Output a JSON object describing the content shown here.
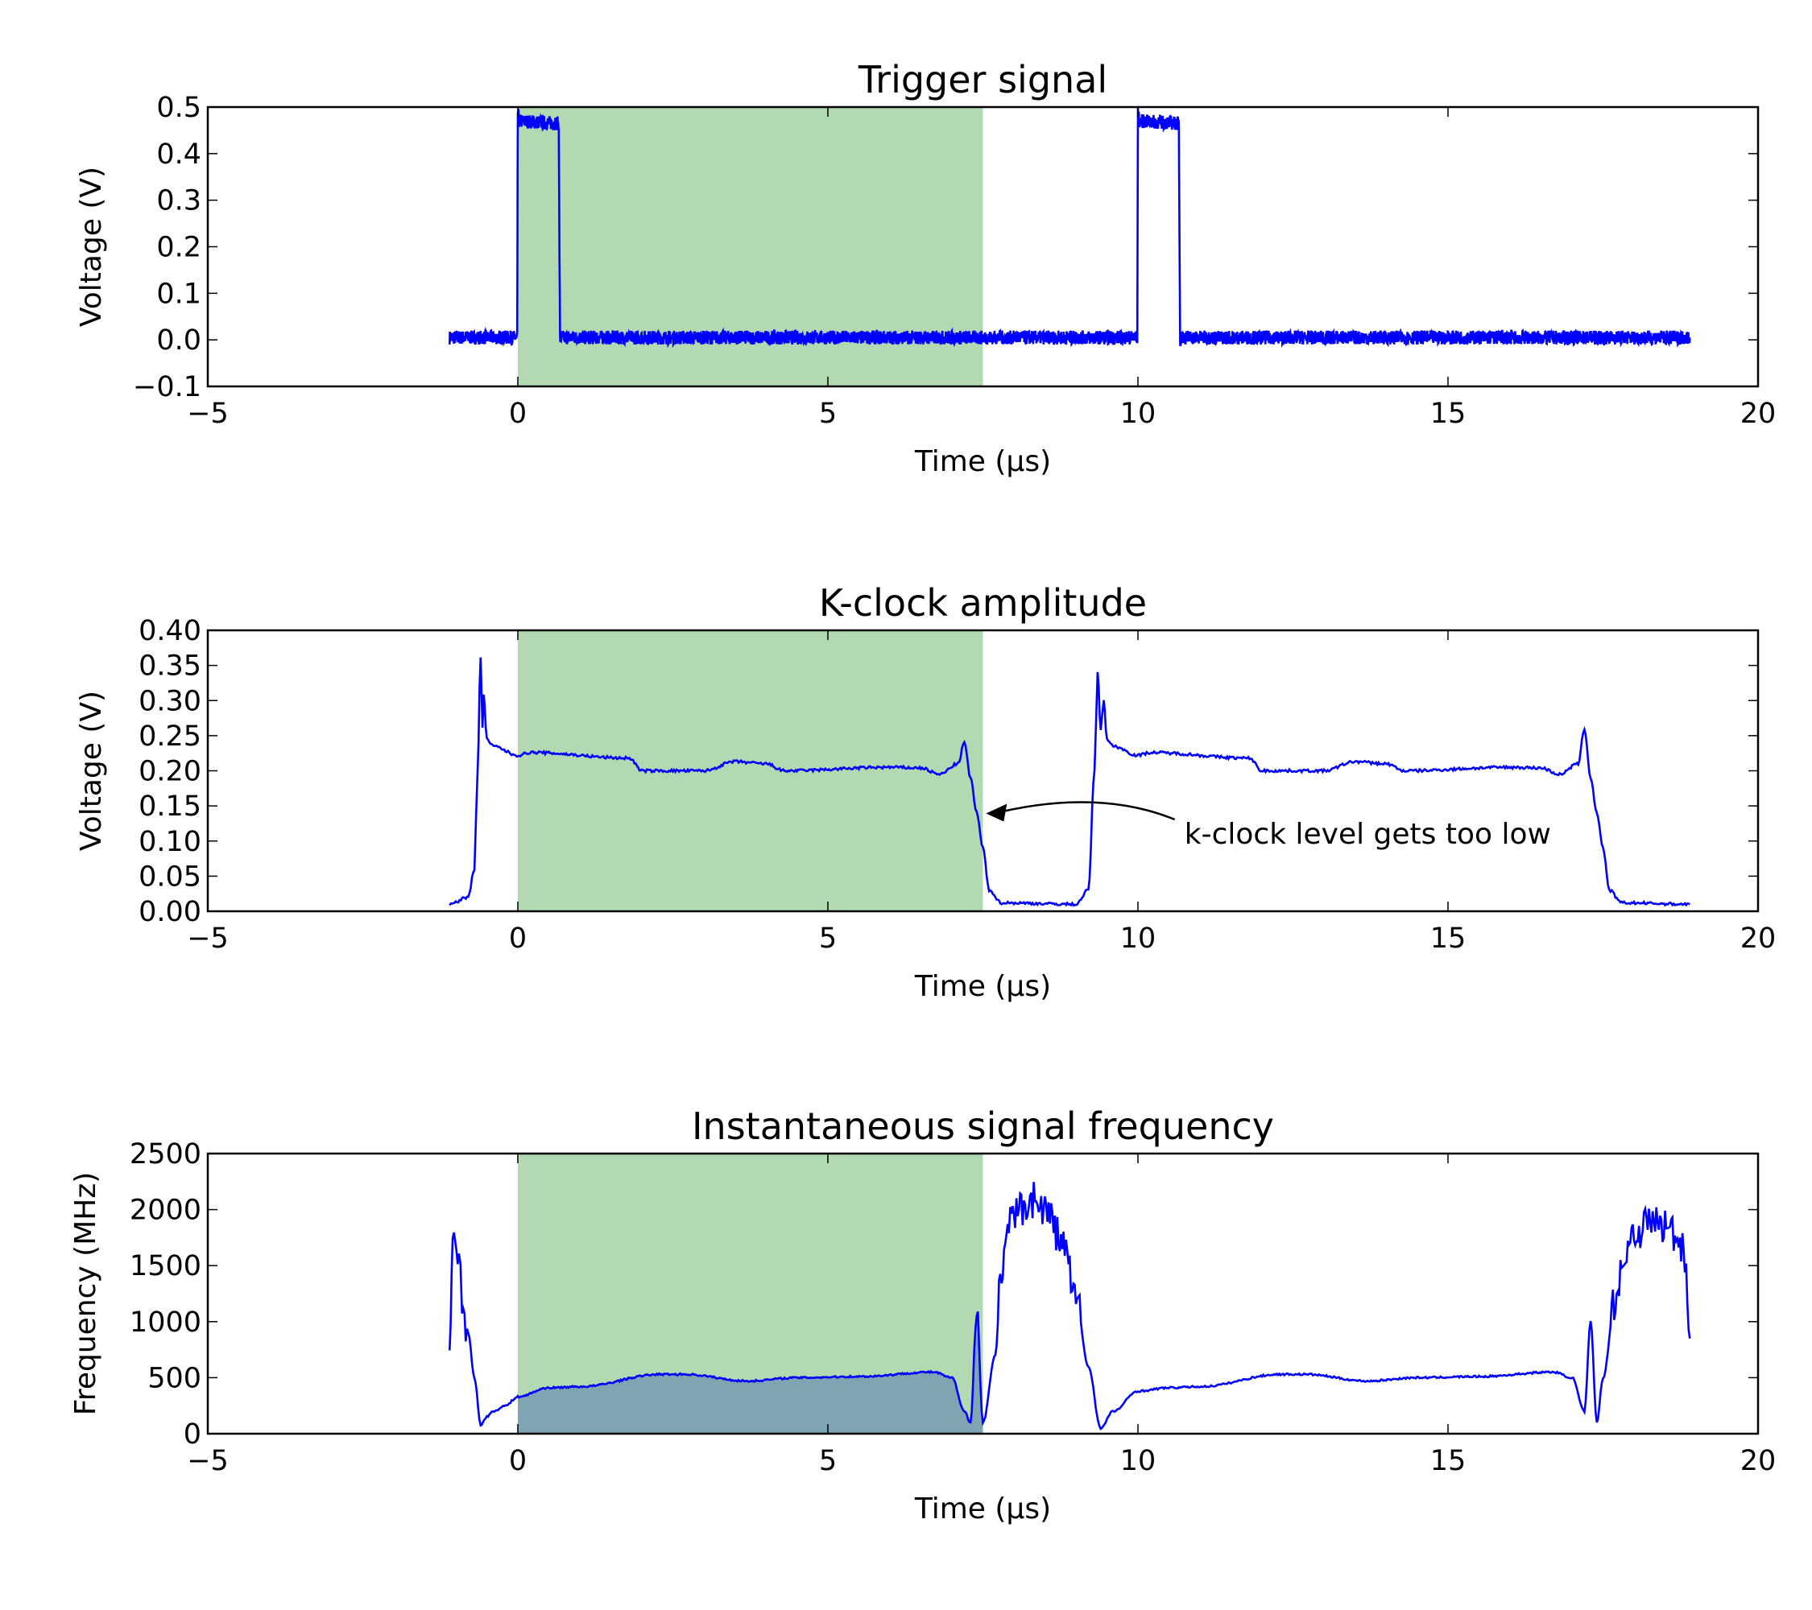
{
  "colors": {
    "line": "#0000ff",
    "span": "#b3d9b3",
    "fill": "#7fa5b3",
    "axes": "#000000"
  },
  "chart_data": [
    {
      "type": "line",
      "title": "Trigger signal",
      "xlabel": "Time (μs)",
      "ylabel": "Voltage (V)",
      "xlim": [
        -5,
        20
      ],
      "ylim": [
        -0.1,
        0.5
      ],
      "xticks": [
        "−5",
        "0",
        "5",
        "10",
        "15",
        "20"
      ],
      "yticks": [
        "−0.1",
        "0.0",
        "0.1",
        "0.2",
        "0.3",
        "0.4",
        "0.5"
      ],
      "xtick_values": [
        -5,
        0,
        5,
        10,
        15,
        20
      ],
      "ytick_values": [
        -0.1,
        0,
        0.1,
        0.2,
        0.3,
        0.4,
        0.5
      ],
      "highlight_span": [
        0,
        7.5
      ],
      "noise_amplitude": 0.015,
      "series": [
        {
          "x": [
            -1.1,
            -0.01,
            0,
            0.02,
            0.66,
            0.68,
            0.7,
            9.99,
            10,
            10.02,
            10.66,
            10.68,
            10.7,
            18.9
          ],
          "y": [
            0.005,
            0.005,
            0.49,
            0.47,
            0.465,
            0.0,
            0.005,
            0.005,
            0.49,
            0.47,
            0.465,
            0.0,
            0.005,
            0.005
          ]
        }
      ]
    },
    {
      "type": "line",
      "title": "K-clock amplitude",
      "xlabel": "Time (μs)",
      "ylabel": "Voltage (V)",
      "xlim": [
        -5,
        20
      ],
      "ylim": [
        0,
        0.4
      ],
      "xticks": [
        "−5",
        "0",
        "5",
        "10",
        "15",
        "20"
      ],
      "yticks": [
        "0.00",
        "0.05",
        "0.10",
        "0.15",
        "0.20",
        "0.25",
        "0.30",
        "0.35",
        "0.40"
      ],
      "xtick_values": [
        -5,
        0,
        5,
        10,
        15,
        20
      ],
      "ytick_values": [
        0,
        0.05,
        0.1,
        0.15,
        0.2,
        0.25,
        0.3,
        0.35,
        0.4
      ],
      "highlight_span": [
        0,
        7.5
      ],
      "annotation": {
        "text": "k-clock level gets too low",
        "xy": [
          7.55,
          0.145
        ],
        "xytext": [
          10.75,
          0.11
        ]
      },
      "series": [
        {
          "x": [
            -1.1,
            -0.8,
            -0.7,
            -0.65,
            -0.6,
            -0.57,
            -0.55,
            -0.5,
            -0.4,
            0,
            0.2,
            1.8,
            2.0,
            3.0,
            3.5,
            4.0,
            4.3,
            6.0,
            6.5,
            6.8,
            7.1,
            7.2,
            7.3,
            7.4,
            7.5,
            7.6,
            7.8,
            9.0,
            9.2,
            9.3,
            9.35,
            9.4,
            9.45,
            9.5,
            9.6,
            10,
            10.2,
            11.8,
            12.0,
            13.0,
            13.5,
            14.0,
            14.3,
            16.0,
            16.5,
            16.8,
            17.1,
            17.2,
            17.3,
            17.4,
            17.5,
            17.6,
            17.8,
            18.9
          ],
          "y": [
            0.01,
            0.02,
            0.06,
            0.2,
            0.36,
            0.26,
            0.31,
            0.245,
            0.235,
            0.222,
            0.226,
            0.218,
            0.2,
            0.2,
            0.213,
            0.21,
            0.2,
            0.205,
            0.204,
            0.195,
            0.21,
            0.24,
            0.19,
            0.14,
            0.09,
            0.03,
            0.012,
            0.01,
            0.03,
            0.2,
            0.34,
            0.26,
            0.3,
            0.245,
            0.235,
            0.222,
            0.226,
            0.218,
            0.2,
            0.2,
            0.213,
            0.21,
            0.2,
            0.205,
            0.204,
            0.195,
            0.21,
            0.26,
            0.19,
            0.14,
            0.09,
            0.03,
            0.012,
            0.01
          ]
        }
      ]
    },
    {
      "type": "line",
      "title": "Instantaneous signal frequency",
      "xlabel": "Time (μs)",
      "ylabel": "Frequency (MHz)",
      "xlim": [
        -5,
        20
      ],
      "ylim": [
        0,
        2500
      ],
      "xticks": [
        "−5",
        "0",
        "5",
        "10",
        "15",
        "20"
      ],
      "yticks": [
        "0",
        "500",
        "1000",
        "1500",
        "2000",
        "2500"
      ],
      "xtick_values": [
        -5,
        0,
        5,
        10,
        15,
        20
      ],
      "ytick_values": [
        0,
        500,
        1000,
        1500,
        2000,
        2500
      ],
      "highlight_span": [
        0,
        7.5
      ],
      "filled_under_curve": [
        0,
        7.5
      ],
      "series": [
        {
          "x": [
            -1.1,
            -1.05,
            -0.95,
            -0.9,
            -0.8,
            -0.7,
            -0.6,
            -0.5,
            -0.4,
            -0.2,
            0,
            0.5,
            1.0,
            2.3,
            2.7,
            3.7,
            4.5,
            5.5,
            6.7,
            7.0,
            7.2,
            7.3,
            7.4,
            7.5,
            7.7,
            7.8,
            8.0,
            8.3,
            8.5,
            8.8,
            9.0,
            9.2,
            9.4,
            9.6,
            10,
            10.5,
            11.0,
            12.3,
            12.7,
            13.7,
            14.5,
            15.5,
            16.7,
            17.0,
            17.2,
            17.3,
            17.4,
            17.5,
            17.7,
            17.8,
            18.0,
            18.3,
            18.5,
            18.8,
            18.9
          ],
          "y": [
            750,
            1700,
            1500,
            1200,
            900,
            500,
            80,
            150,
            200,
            250,
            330,
            410,
            420,
            530,
            530,
            470,
            500,
            510,
            550,
            500,
            200,
            100,
            1100,
            100,
            700,
            1500,
            1950,
            2100,
            2000,
            1700,
            1200,
            600,
            50,
            200,
            380,
            410,
            420,
            530,
            530,
            470,
            500,
            510,
            550,
            500,
            200,
            1000,
            100,
            500,
            1200,
            1500,
            1800,
            1900,
            1850,
            1700,
            850
          ]
        }
      ]
    }
  ]
}
